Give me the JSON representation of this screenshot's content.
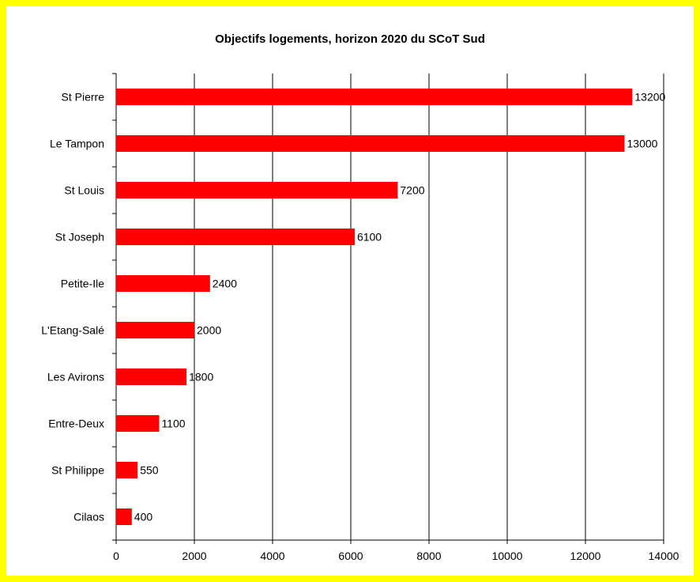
{
  "chart_data": {
    "type": "bar",
    "orientation": "horizontal",
    "title": "Objectifs logements, horizon 2020 du SCoT Sud",
    "categories": [
      "St Pierre",
      "Le Tampon",
      "St Louis",
      "St Joseph",
      "Petite-Ile",
      "L'Etang-Salé",
      "Les Avirons",
      "Entre-Deux",
      "St Philippe",
      "Cilaos"
    ],
    "values": [
      13200,
      13000,
      7200,
      6100,
      2400,
      2000,
      1800,
      1100,
      550,
      400
    ],
    "data_labels": [
      "13200",
      "13000",
      "7200",
      "6100",
      "2400",
      "2000",
      "1800",
      "1100",
      "550",
      "400"
    ],
    "xlim": [
      0,
      14000
    ],
    "x_ticks": [
      0,
      2000,
      4000,
      6000,
      8000,
      10000,
      12000,
      14000
    ],
    "x_tick_labels": [
      "0",
      "2000",
      "4000",
      "6000",
      "8000",
      "10000",
      "12000",
      "14000"
    ],
    "xlabel": "",
    "ylabel": "",
    "grid": "vertical",
    "legend": "none",
    "colors": {
      "bar": "#ff0000",
      "frame": "#ffff00",
      "grid": "#000000"
    }
  }
}
